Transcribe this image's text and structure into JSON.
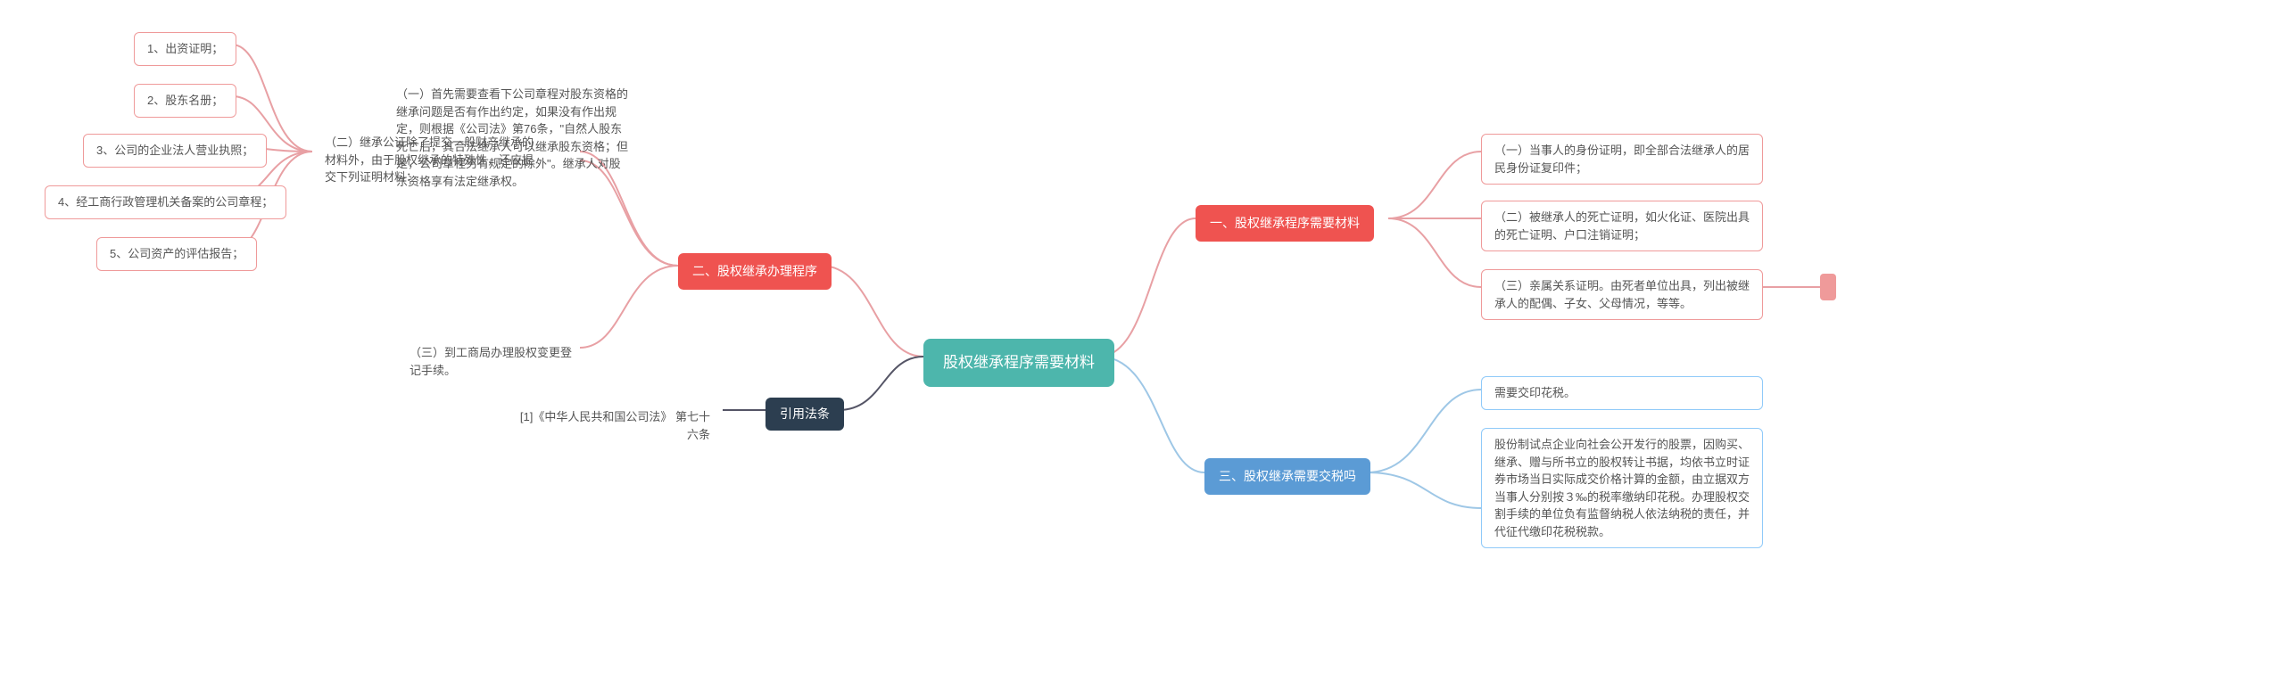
{
  "colors": {
    "root_bg": "#4db6ac",
    "branch1_bg": "#ef5350",
    "branch2_bg": "#2c3e50",
    "branch3_bg": "#5b9bd5",
    "leaf_red_border": "#ef9a9a",
    "leaf_blue_border": "#90caf9",
    "text_color": "#555555",
    "stub_red": "#ef9a9a",
    "connector_red": "#e8a0a4",
    "connector_blue": "#9ec7e6",
    "connector_dark": "#556",
    "connector_teal": "#7fb8b3"
  },
  "root": {
    "label": "股权继承程序需要材料"
  },
  "s1": {
    "label": "一、股权继承程序需要材料",
    "items": [
      "（一）当事人的身份证明，即全部合法继承人的居民身份证复印件；",
      "（二）被继承人的死亡证明，如火化证、医院出具的死亡证明、户口注销证明；",
      "（三）亲属关系证明。由死者单位出具，列出被继承人的配偶、子女、父母情况，等等。"
    ]
  },
  "s2": {
    "label": "二、股权继承办理程序",
    "n1": "（一）首先需要查看下公司章程对股东资格的继承问题是否有作出约定，如果没有作出规定，则根据《公司法》第76条，\"自然人股东死亡后，其合法继承人可以继承股东资格；但是，公司章程另有规定的除外\"。继承人对股东资格享有法定继承权。",
    "n2": {
      "label": "（二）继承公证除了提交一般财产继承的材料外，由于股权继承的特殊性，还应提交下列证明材料：",
      "items": [
        "1、出资证明；",
        "2、股东名册；",
        "3、公司的企业法人营业执照；",
        "4、经工商行政管理机关备案的公司章程；",
        "5、公司资产的评估报告；"
      ]
    },
    "n3": "（三）到工商局办理股权变更登记手续。"
  },
  "s3": {
    "label": "三、股权继承需要交税吗",
    "items": [
      "需要交印花税。",
      "股份制试点企业向社会公开发行的股票，因购买、继承、赠与所书立的股权转让书据，均依书立时证券市场当日实际成交价格计算的金额，由立据双方当事人分别按３‰的税率缴纳印花税。办理股权交割手续的单位负有监督纳税人依法纳税的责任，并代征代缴印花税税款。"
    ]
  },
  "law": {
    "label": "引用法条",
    "ref": "[1]《中华人民共和国公司法》 第七十六条"
  }
}
